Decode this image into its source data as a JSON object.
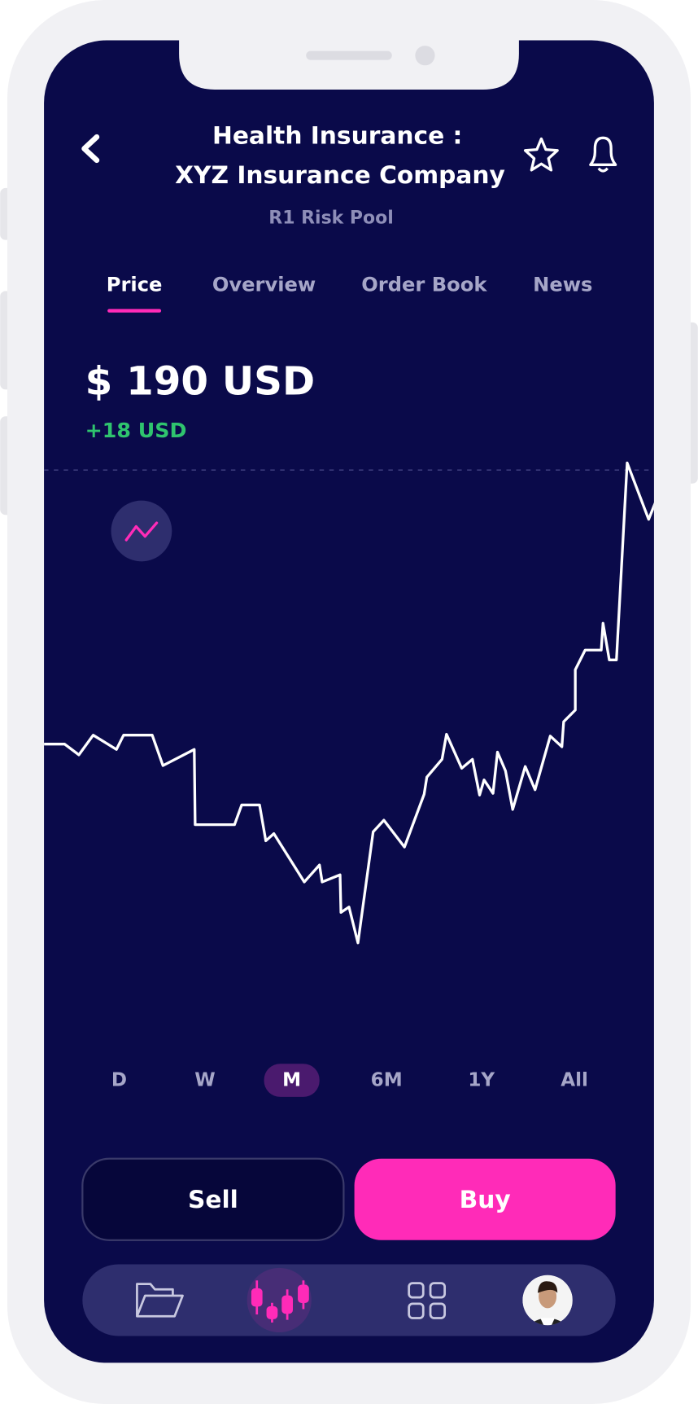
{
  "header": {
    "title_line1": "Health Insurance :",
    "title_line2": "XYZ Insurance Company",
    "subtitle": "R1 Risk Pool"
  },
  "tabs": [
    "Price",
    "Overview",
    "Order Book",
    "News"
  ],
  "price": {
    "amount": "$ 190 USD",
    "change": "+18 USD"
  },
  "ranges": [
    "D",
    "W",
    "M",
    "6M",
    "1Y",
    "All"
  ],
  "actions": {
    "sell": "Sell",
    "buy": "Buy"
  }
}
